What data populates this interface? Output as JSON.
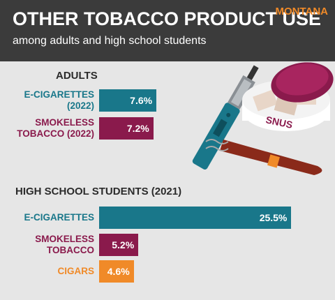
{
  "header": {
    "title": "OTHER TOBACCO PRODUCT USE",
    "subtitle": "among adults and high school students",
    "state": "MONTANA"
  },
  "illustration": {
    "tin_label": "SNUS"
  },
  "chart_data": [
    {
      "type": "bar",
      "orientation": "horizontal",
      "title": "ADULTS",
      "categories": [
        "E-CIGARETTES (2022)",
        "SMOKELESS TOBACCO (2022)"
      ],
      "values": [
        7.6,
        7.2
      ],
      "value_labels": [
        "7.6%",
        "7.2%"
      ],
      "colors": [
        "#19778a",
        "#8a1a4c"
      ]
    },
    {
      "type": "bar",
      "orientation": "horizontal",
      "title": "HIGH SCHOOL STUDENTS (2021)",
      "categories": [
        "E-CIGARETTES",
        "SMOKELESS TOBACCO",
        "CIGARS"
      ],
      "values": [
        25.5,
        5.2,
        4.6
      ],
      "value_labels": [
        "25.5%",
        "5.2%",
        "4.6%"
      ],
      "colors": [
        "#19778a",
        "#8a1a4c",
        "#f08a28"
      ]
    }
  ]
}
